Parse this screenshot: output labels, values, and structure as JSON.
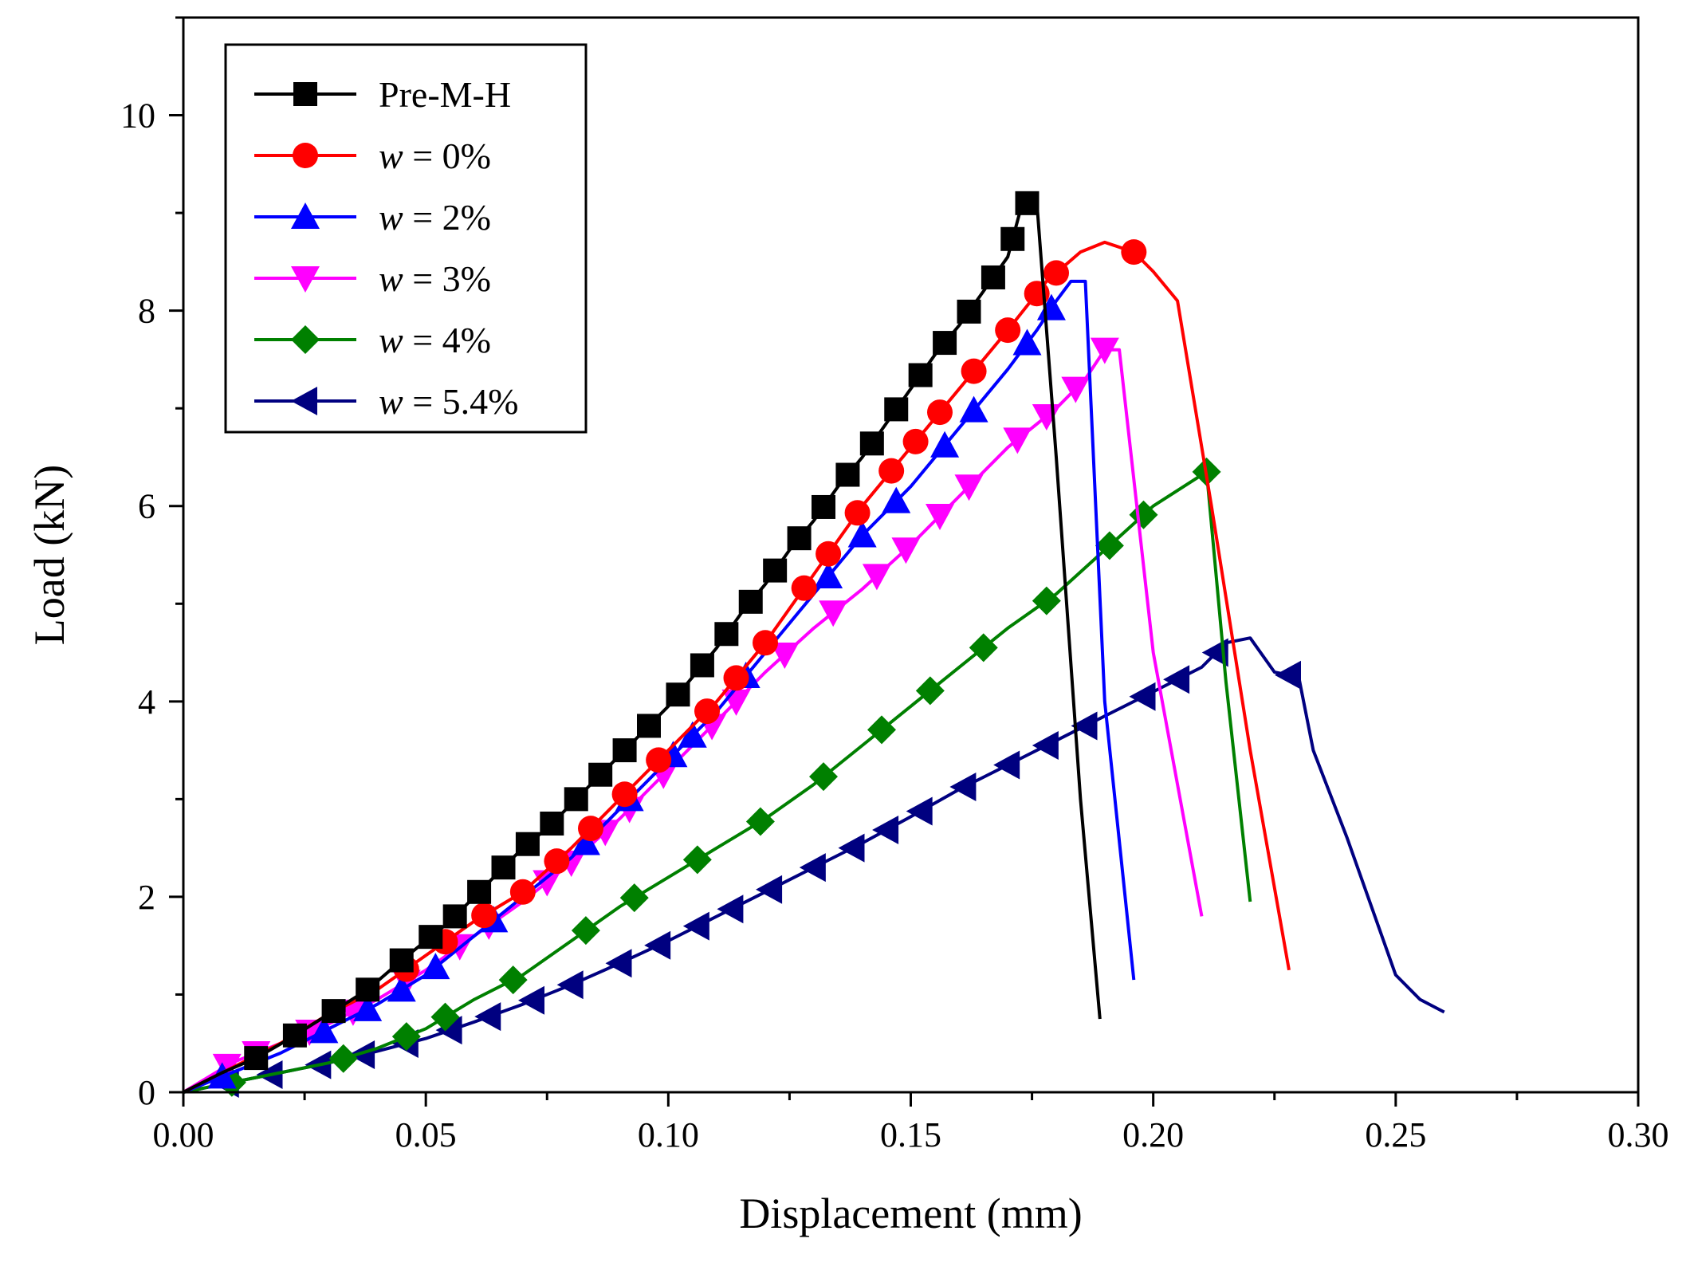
{
  "chart_data": {
    "type": "line",
    "title": "",
    "xlabel": "Displacement (mm)",
    "ylabel": "Load (kN)",
    "xlim": [
      0,
      0.3
    ],
    "ylim": [
      0,
      11
    ],
    "xticks": [
      0.0,
      0.05,
      0.1,
      0.15,
      0.2,
      0.25,
      0.3
    ],
    "xtick_labels": [
      "0.00",
      "0.05",
      "0.10",
      "0.15",
      "0.20",
      "0.25",
      "0.30"
    ],
    "yticks": [
      0,
      2,
      4,
      6,
      8,
      10
    ],
    "ytick_labels": [
      "0",
      "2",
      "4",
      "6",
      "8",
      "10"
    ],
    "grid": false,
    "legend_position": "top-left",
    "series": [
      {
        "name": "Pre-M-H",
        "prefix": "",
        "value": "Pre-M-H",
        "color": "#000000",
        "marker": "square",
        "x": [
          0.0,
          0.008,
          0.015,
          0.022,
          0.03,
          0.038,
          0.045,
          0.05,
          0.055,
          0.06,
          0.065,
          0.07,
          0.075,
          0.08,
          0.085,
          0.09,
          0.095,
          0.1,
          0.105,
          0.11,
          0.115,
          0.12,
          0.125,
          0.13,
          0.135,
          0.14,
          0.145,
          0.15,
          0.155,
          0.16,
          0.165,
          0.17,
          0.173,
          0.176,
          0.18,
          0.185,
          0.189
        ],
        "y": [
          0.0,
          0.2,
          0.35,
          0.55,
          0.8,
          1.05,
          1.35,
          1.55,
          1.75,
          2.0,
          2.25,
          2.5,
          2.7,
          2.95,
          3.2,
          3.45,
          3.7,
          3.95,
          4.25,
          4.55,
          4.9,
          5.2,
          5.55,
          5.85,
          6.2,
          6.5,
          6.85,
          7.2,
          7.55,
          7.85,
          8.2,
          8.55,
          9.1,
          9.1,
          6.5,
          3.0,
          0.75
        ],
        "marker_x": [
          0.015,
          0.023,
          0.031,
          0.038,
          0.045,
          0.051,
          0.056,
          0.061,
          0.066,
          0.071,
          0.076,
          0.081,
          0.086,
          0.091,
          0.096,
          0.102,
          0.107,
          0.112,
          0.117,
          0.122,
          0.127,
          0.132,
          0.137,
          0.142,
          0.147,
          0.152,
          0.157,
          0.162,
          0.167,
          0.171,
          0.174
        ]
      },
      {
        "name": "w = 0%",
        "prefix": "w",
        "value": " = 0%",
        "color": "#ff0000",
        "marker": "circle",
        "x": [
          0.0,
          0.01,
          0.02,
          0.03,
          0.04,
          0.05,
          0.06,
          0.07,
          0.08,
          0.09,
          0.1,
          0.11,
          0.12,
          0.13,
          0.14,
          0.15,
          0.16,
          0.17,
          0.178,
          0.185,
          0.19,
          0.196,
          0.2,
          0.205,
          0.212,
          0.22,
          0.228
        ],
        "y": [
          0.0,
          0.25,
          0.5,
          0.8,
          1.05,
          1.4,
          1.75,
          2.05,
          2.5,
          3.0,
          3.5,
          4.0,
          4.6,
          5.3,
          6.0,
          6.6,
          7.2,
          7.8,
          8.3,
          8.6,
          8.7,
          8.6,
          8.4,
          8.1,
          6.0,
          3.5,
          1.25
        ],
        "marker_x": [
          0.046,
          0.054,
          0.062,
          0.07,
          0.077,
          0.084,
          0.091,
          0.098,
          0.108,
          0.114,
          0.12,
          0.128,
          0.133,
          0.139,
          0.146,
          0.151,
          0.156,
          0.163,
          0.17,
          0.176,
          0.18,
          0.196
        ]
      },
      {
        "name": "w = 2%",
        "prefix": "w",
        "value": " = 2%",
        "color": "#0000ff",
        "marker": "triangle-up",
        "x": [
          0.0,
          0.01,
          0.02,
          0.03,
          0.04,
          0.05,
          0.06,
          0.07,
          0.08,
          0.09,
          0.1,
          0.11,
          0.12,
          0.13,
          0.14,
          0.15,
          0.16,
          0.17,
          0.176,
          0.18,
          0.183,
          0.186,
          0.19,
          0.196
        ],
        "y": [
          0.0,
          0.2,
          0.4,
          0.65,
          0.9,
          1.2,
          1.6,
          2.0,
          2.4,
          2.9,
          3.4,
          3.9,
          4.5,
          5.1,
          5.7,
          6.2,
          6.8,
          7.4,
          7.8,
          8.1,
          8.3,
          8.3,
          4.0,
          1.15
        ],
        "marker_x": [
          0.008,
          0.029,
          0.038,
          0.045,
          0.052,
          0.064,
          0.083,
          0.092,
          0.101,
          0.105,
          0.116,
          0.133,
          0.14,
          0.147,
          0.157,
          0.163,
          0.174,
          0.179
        ]
      },
      {
        "name": "w = 3%",
        "prefix": "w",
        "value": " = 3%",
        "color": "#ff00ff",
        "marker": "triangle-down",
        "x": [
          0.0,
          0.01,
          0.02,
          0.03,
          0.04,
          0.05,
          0.06,
          0.07,
          0.08,
          0.09,
          0.1,
          0.11,
          0.12,
          0.13,
          0.14,
          0.15,
          0.16,
          0.17,
          0.18,
          0.186,
          0.19,
          0.193,
          0.2,
          0.21
        ],
        "y": [
          0.0,
          0.3,
          0.5,
          0.7,
          0.95,
          1.25,
          1.6,
          1.95,
          2.35,
          2.8,
          3.3,
          3.8,
          4.3,
          4.75,
          5.15,
          5.6,
          6.1,
          6.6,
          7.0,
          7.3,
          7.6,
          7.6,
          4.5,
          1.8
        ],
        "marker_x": [
          0.009,
          0.015,
          0.026,
          0.035,
          0.046,
          0.057,
          0.063,
          0.075,
          0.08,
          0.087,
          0.092,
          0.099,
          0.109,
          0.114,
          0.124,
          0.134,
          0.143,
          0.149,
          0.156,
          0.162,
          0.172,
          0.178,
          0.184,
          0.19
        ]
      },
      {
        "name": "w = 4%",
        "prefix": "w",
        "value": " = 4%",
        "color": "#008000",
        "marker": "diamond",
        "x": [
          0.0,
          0.01,
          0.02,
          0.03,
          0.04,
          0.05,
          0.06,
          0.07,
          0.08,
          0.09,
          0.1,
          0.11,
          0.12,
          0.13,
          0.14,
          0.15,
          0.16,
          0.17,
          0.18,
          0.19,
          0.2,
          0.211,
          0.215,
          0.22
        ],
        "y": [
          0.0,
          0.1,
          0.2,
          0.3,
          0.45,
          0.65,
          0.95,
          1.2,
          1.55,
          1.9,
          2.2,
          2.5,
          2.8,
          3.15,
          3.55,
          3.95,
          4.35,
          4.75,
          5.1,
          5.55,
          6.0,
          6.35,
          4.2,
          1.95
        ],
        "marker_x": [
          0.01,
          0.033,
          0.046,
          0.054,
          0.068,
          0.083,
          0.093,
          0.106,
          0.119,
          0.132,
          0.144,
          0.154,
          0.165,
          0.178,
          0.191,
          0.198,
          0.211
        ]
      },
      {
        "name": "w = 5.4%",
        "prefix": "w",
        "value": " = 5.4%",
        "color": "#000080",
        "marker": "triangle-left",
        "x": [
          0.0,
          0.01,
          0.02,
          0.03,
          0.04,
          0.05,
          0.06,
          0.07,
          0.08,
          0.09,
          0.1,
          0.11,
          0.12,
          0.13,
          0.14,
          0.15,
          0.16,
          0.17,
          0.18,
          0.19,
          0.2,
          0.21,
          0.215,
          0.22,
          0.225,
          0.23,
          0.233,
          0.24,
          0.245,
          0.25,
          0.255,
          0.26
        ],
        "y": [
          0.0,
          0.1,
          0.2,
          0.3,
          0.42,
          0.55,
          0.72,
          0.9,
          1.1,
          1.32,
          1.55,
          1.8,
          2.05,
          2.3,
          2.55,
          2.82,
          3.1,
          3.35,
          3.6,
          3.85,
          4.1,
          4.35,
          4.6,
          4.65,
          4.3,
          4.25,
          3.5,
          2.6,
          1.9,
          1.2,
          0.95,
          0.82
        ],
        "marker_x": [
          0.009,
          0.018,
          0.028,
          0.037,
          0.046,
          0.055,
          0.063,
          0.072,
          0.08,
          0.09,
          0.098,
          0.106,
          0.113,
          0.121,
          0.13,
          0.138,
          0.145,
          0.152,
          0.161,
          0.17,
          0.178,
          0.186,
          0.198,
          0.205,
          0.213,
          0.228
        ]
      }
    ]
  }
}
